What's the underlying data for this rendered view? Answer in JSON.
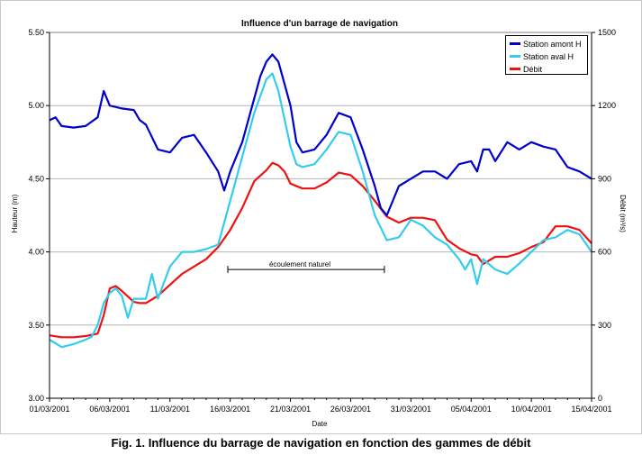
{
  "caption": "Fig. 1. Influence du barrage de navigation en fonction des gammes de débit",
  "chart_data": {
    "type": "line",
    "title": "Influence d'un barrage de navigation",
    "xlabel": "Date",
    "ylabel": "Hauteur (m)",
    "y2label": "Débit (m³/s)",
    "ylim": [
      3.0,
      5.5
    ],
    "y_ticks": [
      "3.00",
      "3.50",
      "4.00",
      "4.50",
      "5.00",
      "5.50"
    ],
    "y2lim": [
      0,
      1500
    ],
    "y2_ticks": [
      "0",
      "300",
      "600",
      "900",
      "1200",
      "1500"
    ],
    "x_ticks": [
      "01/03/2001",
      "06/03/2001",
      "11/03/2001",
      "16/03/2001",
      "21/03/2001",
      "26/03/2001",
      "31/03/2001",
      "05/04/2001",
      "10/04/2001",
      "15/04/2001"
    ],
    "xlim_days": [
      0,
      45
    ],
    "grid": "horizontal",
    "legend_position": "top-right",
    "annotation": {
      "text": "écoulement naturel",
      "from_day": 14.8,
      "to_day": 27.8,
      "y": 3.88
    },
    "series": [
      {
        "name": "Station amont H",
        "axis": "left",
        "color": "#0000cc",
        "x": [
          0,
          0.5,
          1,
          2,
          3,
          4,
          4.5,
          5,
          6,
          7,
          7.5,
          8,
          9,
          10,
          11,
          12,
          13,
          14,
          14.5,
          15,
          16,
          17,
          17.5,
          18,
          18.5,
          19,
          20,
          20.5,
          21,
          22,
          23,
          24,
          25,
          26,
          27,
          27.5,
          28,
          29,
          30,
          31,
          32,
          33,
          34,
          35,
          35.5,
          36,
          36.5,
          37,
          38,
          39,
          40,
          41,
          42,
          43,
          44,
          45
        ],
        "y": [
          4.9,
          4.92,
          4.86,
          4.85,
          4.86,
          4.92,
          5.1,
          5.0,
          4.98,
          4.97,
          4.9,
          4.87,
          4.7,
          4.68,
          4.78,
          4.8,
          4.68,
          4.55,
          4.42,
          4.55,
          4.75,
          5.05,
          5.2,
          5.3,
          5.35,
          5.3,
          5.0,
          4.75,
          4.68,
          4.7,
          4.8,
          4.95,
          4.92,
          4.7,
          4.45,
          4.3,
          4.25,
          4.45,
          4.5,
          4.55,
          4.55,
          4.5,
          4.6,
          4.62,
          4.55,
          4.7,
          4.7,
          4.62,
          4.75,
          4.7,
          4.75,
          4.72,
          4.7,
          4.58,
          4.55,
          4.5
        ]
      },
      {
        "name": "Station aval H",
        "axis": "left",
        "color": "#33ccee",
        "x": [
          0,
          1,
          2,
          3,
          3.5,
          4,
          4.5,
          5,
          5.5,
          6,
          6.5,
          7,
          8,
          8.5,
          9,
          10,
          11,
          12,
          13,
          14,
          15,
          16,
          17,
          18,
          18.5,
          19,
          20,
          20.5,
          21,
          22,
          23,
          24,
          25,
          26,
          27,
          28,
          29,
          30,
          31,
          32,
          33,
          34,
          34.5,
          35,
          35.5,
          36,
          37,
          38,
          39,
          40,
          41,
          42,
          43,
          44,
          45
        ],
        "y": [
          3.4,
          3.35,
          3.37,
          3.4,
          3.42,
          3.5,
          3.65,
          3.72,
          3.75,
          3.7,
          3.55,
          3.68,
          3.68,
          3.85,
          3.68,
          3.9,
          4.0,
          4.0,
          4.02,
          4.05,
          4.35,
          4.65,
          4.95,
          5.18,
          5.22,
          5.1,
          4.72,
          4.6,
          4.58,
          4.6,
          4.7,
          4.82,
          4.8,
          4.55,
          4.25,
          4.08,
          4.1,
          4.22,
          4.18,
          4.1,
          4.05,
          3.95,
          3.88,
          3.95,
          3.78,
          3.95,
          3.88,
          3.85,
          3.92,
          4.0,
          4.08,
          4.1,
          4.15,
          4.12,
          4.0
        ]
      },
      {
        "name": "Débit",
        "axis": "right",
        "color": "#ee1111",
        "x": [
          0,
          1,
          2,
          3,
          4,
          4.5,
          5,
          5.5,
          6,
          7,
          7.5,
          8,
          9,
          10,
          11,
          12,
          13,
          14,
          15,
          16,
          17,
          18,
          18.5,
          19,
          19.5,
          20,
          21,
          22,
          23,
          24,
          25,
          26,
          27,
          28,
          29,
          30,
          31,
          32,
          33,
          34,
          35,
          35.5,
          36,
          37,
          38,
          39,
          40,
          41,
          42,
          43,
          44,
          45
        ],
        "y": [
          258,
          250,
          250,
          255,
          265,
          340,
          450,
          460,
          440,
          395,
          390,
          390,
          420,
          465,
          510,
          540,
          570,
          620,
          690,
          780,
          890,
          935,
          965,
          955,
          930,
          880,
          860,
          860,
          885,
          925,
          915,
          870,
          810,
          745,
          720,
          740,
          740,
          730,
          650,
          615,
          590,
          585,
          550,
          580,
          580,
          595,
          620,
          640,
          705,
          705,
          690,
          635
        ]
      }
    ]
  }
}
